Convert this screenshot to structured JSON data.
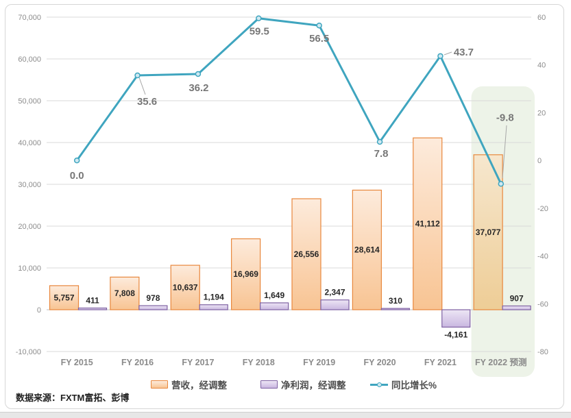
{
  "chart_data": {
    "type": "combo-bar-line",
    "categories": [
      "FY 2015",
      "FY 2016",
      "FY 2017",
      "FY 2018",
      "FY 2019",
      "FY 2020",
      "FY 2021",
      "FY 2022 预测"
    ],
    "series": [
      {
        "name": "营收，经调整",
        "type": "bar",
        "axis": "left",
        "values": [
          5757,
          7808,
          10637,
          16969,
          26556,
          28614,
          41112,
          37077
        ],
        "labels": [
          "5,757",
          "7,808",
          "10,637",
          "16,969",
          "26,556",
          "28,614",
          "41,112",
          "37,077"
        ]
      },
      {
        "name": "净利润，经调整",
        "type": "bar",
        "axis": "left",
        "values": [
          411,
          978,
          1194,
          1649,
          2347,
          310,
          -4161,
          907
        ],
        "labels": [
          "411",
          "978",
          "1,194",
          "1,649",
          "2,347",
          "310",
          "-4,161",
          "907"
        ]
      },
      {
        "name": "同比增长%",
        "type": "line",
        "axis": "right",
        "values": [
          0.0,
          35.6,
          36.2,
          59.5,
          56.5,
          7.8,
          43.7,
          -9.8
        ],
        "labels": [
          "0.0",
          "35.6",
          "36.2",
          "59.5",
          "56.5",
          "7.8",
          "43.7",
          "-9.8"
        ]
      }
    ],
    "left_axis": {
      "min": -10000,
      "max": 70000,
      "tick_values": [
        70000,
        60000,
        50000,
        40000,
        30000,
        20000,
        10000,
        0,
        -10000
      ],
      "tick_labels": [
        "70,000",
        "60,000",
        "50,000",
        "40,000",
        "30,000",
        "20,000",
        "10,000",
        "0",
        "-10,000"
      ]
    },
    "right_axis": {
      "min": -80,
      "max": 60,
      "tick_values": [
        60,
        40,
        20,
        0,
        -20,
        -40,
        -60,
        -80
      ],
      "tick_labels": [
        "60",
        "40",
        "20",
        "0",
        "-20",
        "-40",
        "-60",
        "-80"
      ]
    },
    "highlight_category_index": 7,
    "grid": true,
    "legend_position": "bottom"
  },
  "source_note": "数据来源：FXTM富拓、彭博",
  "colors": {
    "revenue_border": "#E8873C",
    "revenue_fill_top": "#FDEBDC",
    "revenue_fill_bottom": "#F8C493",
    "revenue_hl_fill_top": "#F6E7CE",
    "revenue_hl_fill_bottom": "#EECD96",
    "profit_border": "#7E61A2",
    "profit_fill_top": "#EDE6F5",
    "profit_fill_bottom": "#C9B7E0",
    "line": "#3FA5BF",
    "marker_fill": "#CFE9F2",
    "highlight_bg": "#EDF3E8",
    "grid": "#D9D9D9",
    "axis_line": "#BFBFBF",
    "tick_text": "#8C8C8C",
    "category_text": "#8A8A8A",
    "data_label_text": "#262626",
    "line_label_text": "#777777",
    "negative_text": "#FF0000",
    "legend_text": "#4D4D4D",
    "leader_line": "#A6A6A6",
    "frame_border": "#D6D6D6"
  }
}
